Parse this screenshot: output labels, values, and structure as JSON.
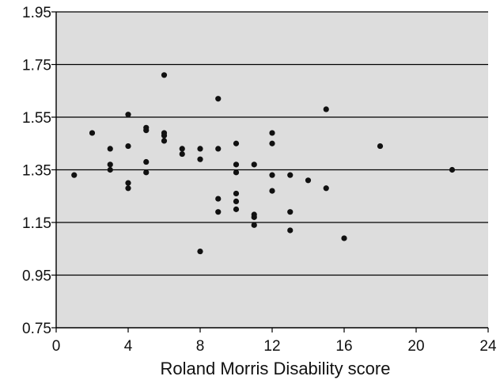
{
  "chart_data": {
    "type": "scatter",
    "title": "",
    "xlabel": "Roland Morris Disability score",
    "ylabel": "",
    "xlim": [
      0,
      24
    ],
    "ylim": [
      0.75,
      1.95
    ],
    "x_ticks": [
      0,
      4,
      8,
      12,
      16,
      20,
      24
    ],
    "y_ticks": [
      "0.75",
      "0.95",
      "1.15",
      "1.35",
      "1.55",
      "1.75",
      "1.95"
    ],
    "grid": "horizontal",
    "plot_background": "#dddddd",
    "point_color": "#111111",
    "series": [
      {
        "points": [
          [
            1,
            1.33
          ],
          [
            2,
            1.49
          ],
          [
            3,
            1.43
          ],
          [
            3,
            1.37
          ],
          [
            3,
            1.35
          ],
          [
            4,
            1.56
          ],
          [
            4,
            1.44
          ],
          [
            4,
            1.3
          ],
          [
            4,
            1.28
          ],
          [
            5,
            1.51
          ],
          [
            5,
            1.5
          ],
          [
            5,
            1.38
          ],
          [
            5,
            1.34
          ],
          [
            6,
            1.71
          ],
          [
            6,
            1.49
          ],
          [
            6,
            1.48
          ],
          [
            6,
            1.46
          ],
          [
            7,
            1.43
          ],
          [
            7,
            1.41
          ],
          [
            8,
            1.43
          ],
          [
            8,
            1.39
          ],
          [
            8,
            1.04
          ],
          [
            9,
            1.62
          ],
          [
            9,
            1.43
          ],
          [
            9,
            1.24
          ],
          [
            9,
            1.19
          ],
          [
            10,
            1.45
          ],
          [
            10,
            1.37
          ],
          [
            10,
            1.34
          ],
          [
            10,
            1.26
          ],
          [
            10,
            1.23
          ],
          [
            10,
            1.2
          ],
          [
            11,
            1.37
          ],
          [
            11,
            1.18
          ],
          [
            11,
            1.17
          ],
          [
            11,
            1.14
          ],
          [
            12,
            1.49
          ],
          [
            12,
            1.45
          ],
          [
            12,
            1.33
          ],
          [
            12,
            1.27
          ],
          [
            13,
            1.33
          ],
          [
            13,
            1.19
          ],
          [
            13,
            1.12
          ],
          [
            14,
            1.31
          ],
          [
            15,
            1.58
          ],
          [
            15,
            1.28
          ],
          [
            16,
            1.09
          ],
          [
            18,
            1.44
          ],
          [
            22,
            1.35
          ]
        ]
      }
    ]
  }
}
